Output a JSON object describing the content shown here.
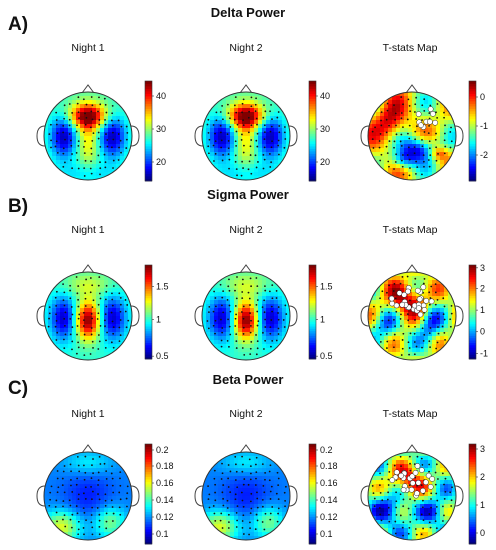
{
  "panels": [
    {
      "label": "A)",
      "title": "Delta Power",
      "maps": [
        {
          "title": "Night 1",
          "kind": "delta",
          "ticks": [
            "40",
            "30",
            "20"
          ],
          "tick_levels": [
            0.85,
            0.52,
            0.19
          ],
          "markers": 0
        },
        {
          "title": "Night 2",
          "kind": "delta",
          "ticks": [
            "40",
            "30",
            "20"
          ],
          "tick_levels": [
            0.85,
            0.52,
            0.19
          ],
          "markers": 0
        },
        {
          "title": "T-stats Map",
          "kind": "tdelta",
          "ticks": [
            "0",
            "-1",
            "-2"
          ],
          "tick_levels": [
            0.84,
            0.55,
            0.26
          ],
          "markers": 9
        }
      ]
    },
    {
      "label": "B)",
      "title": "Sigma Power",
      "maps": [
        {
          "title": "Night 1",
          "kind": "sigma",
          "ticks": [
            "1.5",
            "1",
            "0.5"
          ],
          "tick_levels": [
            0.77,
            0.42,
            0.03
          ],
          "markers": 0
        },
        {
          "title": "Night 2",
          "kind": "sigma",
          "ticks": [
            "1.5",
            "1",
            "0.5"
          ],
          "tick_levels": [
            0.77,
            0.42,
            0.03
          ],
          "markers": 0
        },
        {
          "title": "T-stats Map",
          "kind": "tsigma",
          "ticks": [
            "3",
            "2",
            "1",
            "0",
            "-1"
          ],
          "tick_levels": [
            0.97,
            0.75,
            0.52,
            0.29,
            0.06
          ],
          "markers": 30
        }
      ]
    },
    {
      "label": "C)",
      "title": "Beta Power",
      "maps": [
        {
          "title": "Night 1",
          "kind": "beta",
          "ticks": [
            "0.2",
            "0.18",
            "0.16",
            "0.14",
            "0.12",
            "0.1"
          ],
          "tick_levels": [
            0.94,
            0.78,
            0.61,
            0.44,
            0.27,
            0.1
          ],
          "markers": 0
        },
        {
          "title": "Night 2",
          "kind": "beta",
          "ticks": [
            "0.2",
            "0.18",
            "0.16",
            "0.14",
            "0.12",
            "0.1"
          ],
          "tick_levels": [
            0.94,
            0.78,
            0.61,
            0.44,
            0.27,
            0.1
          ],
          "markers": 0
        },
        {
          "title": "T-stats Map",
          "kind": "tbeta",
          "ticks": [
            "3",
            "2",
            "1",
            "0"
          ],
          "tick_levels": [
            0.95,
            0.67,
            0.39,
            0.11
          ],
          "markers": 26
        }
      ]
    }
  ]
}
